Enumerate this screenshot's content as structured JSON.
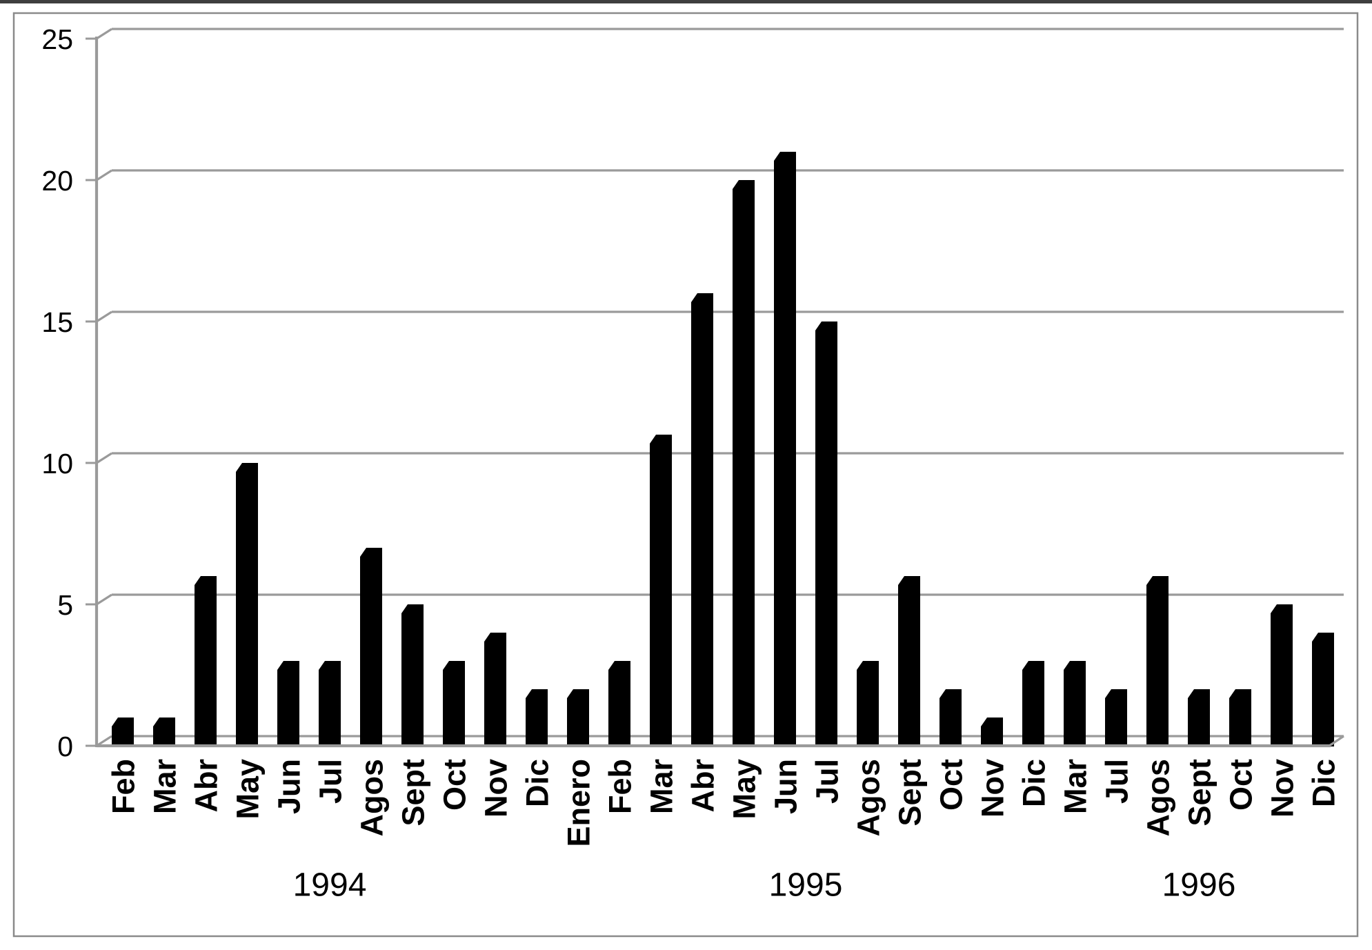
{
  "chart_data": {
    "type": "bar",
    "title": "",
    "xlabel": "",
    "ylabel": "",
    "ylim": [
      0,
      25
    ],
    "yticks": [
      0,
      5,
      10,
      15,
      20,
      25
    ],
    "grid": true,
    "legend_position": "none",
    "bar_color": "#000000",
    "grid_color": "#9a9a9a",
    "axis_color": "#9a9a9a",
    "frame_color": "#8a8a8a",
    "categories": [
      "Feb",
      "Mar",
      "Abr",
      "May",
      "Jun",
      "Jul",
      "Agos",
      "Sept",
      "Oct",
      "Nov",
      "Dic",
      "Enero",
      "Feb",
      "Mar",
      "Abr",
      "May",
      "Jun",
      "Jul",
      "Agos",
      "Sept",
      "Oct",
      "Nov",
      "Dic",
      "Mar",
      "Jul",
      "Agos",
      "Sept",
      "Oct",
      "Nov",
      "Dic"
    ],
    "values": [
      1,
      1,
      6,
      10,
      3,
      3,
      7,
      5,
      3,
      4,
      2,
      2,
      3,
      11,
      16,
      20,
      21,
      15,
      3,
      6,
      2,
      1,
      3,
      3,
      2,
      6,
      2,
      2,
      5,
      4
    ],
    "year_groups": [
      {
        "label": "1994",
        "start_index": 0,
        "count": 11
      },
      {
        "label": "1995",
        "start_index": 11,
        "count": 12
      },
      {
        "label": "1996",
        "start_index": 23,
        "count": 7
      }
    ]
  }
}
